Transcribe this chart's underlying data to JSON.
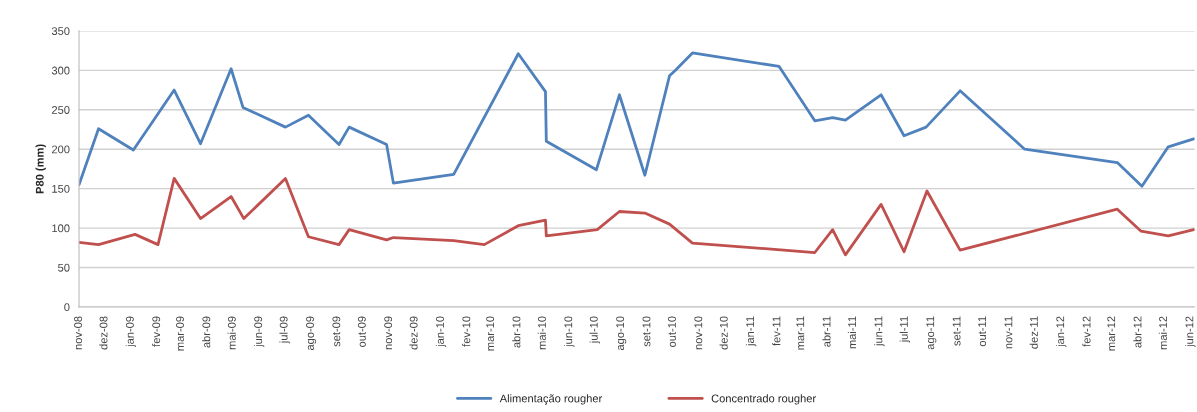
{
  "chart_data": {
    "type": "line",
    "ylabel": "P80 (mm)",
    "ylim": [
      0,
      350
    ],
    "yticks": [
      0,
      50,
      100,
      150,
      200,
      250,
      300,
      350
    ],
    "xlim": [
      "2008-11-01",
      "2012-06-06"
    ],
    "xticks": [
      {
        "value": "2008-11-01",
        "label": "nov-08"
      },
      {
        "value": "2008-12-01",
        "label": "dez-08"
      },
      {
        "value": "2009-01-01",
        "label": "jan-09"
      },
      {
        "value": "2009-02-01",
        "label": "fev-09"
      },
      {
        "value": "2009-03-01",
        "label": "mar-09"
      },
      {
        "value": "2009-04-01",
        "label": "abr-09"
      },
      {
        "value": "2009-05-01",
        "label": "mai-09"
      },
      {
        "value": "2009-06-01",
        "label": "jun-09"
      },
      {
        "value": "2009-07-01",
        "label": "jul-09"
      },
      {
        "value": "2009-08-01",
        "label": "ago-09"
      },
      {
        "value": "2009-09-01",
        "label": "set-09"
      },
      {
        "value": "2009-10-01",
        "label": "out-09"
      },
      {
        "value": "2009-11-01",
        "label": "nov-09"
      },
      {
        "value": "2009-12-01",
        "label": "dez-09"
      },
      {
        "value": "2010-01-01",
        "label": "jan-10"
      },
      {
        "value": "2010-02-01",
        "label": "fev-10"
      },
      {
        "value": "2010-03-01",
        "label": "mar-10"
      },
      {
        "value": "2010-04-01",
        "label": "abr-10"
      },
      {
        "value": "2010-05-01",
        "label": "mai-10"
      },
      {
        "value": "2010-06-01",
        "label": "jun-10"
      },
      {
        "value": "2010-07-01",
        "label": "jul-10"
      },
      {
        "value": "2010-08-01",
        "label": "ago-10"
      },
      {
        "value": "2010-09-01",
        "label": "set-10"
      },
      {
        "value": "2010-10-01",
        "label": "out-10"
      },
      {
        "value": "2010-11-01",
        "label": "nov-10"
      },
      {
        "value": "2010-12-01",
        "label": "dez-10"
      },
      {
        "value": "2011-01-01",
        "label": "jan-11"
      },
      {
        "value": "2011-02-01",
        "label": "fev-11"
      },
      {
        "value": "2011-03-01",
        "label": "mar-11"
      },
      {
        "value": "2011-04-01",
        "label": "abr-11"
      },
      {
        "value": "2011-05-01",
        "label": "mai-11"
      },
      {
        "value": "2011-06-01",
        "label": "jun-11"
      },
      {
        "value": "2011-07-01",
        "label": "jul-11"
      },
      {
        "value": "2011-08-01",
        "label": "ago-11"
      },
      {
        "value": "2011-09-01",
        "label": "set-11"
      },
      {
        "value": "2011-10-01",
        "label": "out-11"
      },
      {
        "value": "2011-11-01",
        "label": "nov-11"
      },
      {
        "value": "2011-12-01",
        "label": "dez-11"
      },
      {
        "value": "2012-01-01",
        "label": "jan-12"
      },
      {
        "value": "2012-02-01",
        "label": "fev-12"
      },
      {
        "value": "2012-03-01",
        "label": "mar-12"
      },
      {
        "value": "2012-04-01",
        "label": "abr-12"
      },
      {
        "value": "2012-05-01",
        "label": "mai-12"
      },
      {
        "value": "2012-06-01",
        "label": "jun-12"
      }
    ],
    "grid": "y",
    "legend": "bottom",
    "marker": "none",
    "line_style": "solid",
    "series": [
      {
        "name": "Alimentação rougher",
        "color": "#4f81bd",
        "x": [
          "2008-11-01",
          "2008-11-24",
          "2009-01-04",
          "2009-02-21",
          "2009-03-24",
          "2009-04-29",
          "2009-05-13",
          "2009-07-02",
          "2009-07-29",
          "2009-09-03",
          "2009-09-15",
          "2009-10-29",
          "2009-11-06",
          "2010-01-16",
          "2010-04-02",
          "2010-05-04",
          "2010-05-05",
          "2010-07-03",
          "2010-07-30",
          "2010-08-29",
          "2010-09-27",
          "2010-10-04",
          "2010-10-24",
          "2011-02-03",
          "2011-03-17",
          "2011-04-07",
          "2011-04-22",
          "2011-06-03",
          "2011-06-30",
          "2011-07-26",
          "2011-09-04",
          "2011-11-19",
          "2012-03-07",
          "2012-04-05",
          "2012-05-06",
          "2012-06-05"
        ],
        "values": [
          155,
          226,
          199,
          275,
          207,
          302,
          253,
          228,
          243,
          206,
          228,
          206,
          157,
          168,
          321,
          273,
          210,
          174,
          269,
          167,
          293,
          300,
          322,
          305,
          236,
          240,
          237,
          269,
          217,
          228,
          274,
          200,
          183,
          153,
          203,
          213
        ]
      },
      {
        "name": "Concentrado rougher",
        "color": "#c0504d",
        "x": [
          "2008-11-01",
          "2008-11-24",
          "2009-01-06",
          "2009-02-02",
          "2009-02-21",
          "2009-03-24",
          "2009-04-29",
          "2009-05-14",
          "2009-07-02",
          "2009-07-29",
          "2009-09-03",
          "2009-09-15",
          "2009-10-29",
          "2009-11-06",
          "2010-01-16",
          "2010-02-21",
          "2010-04-02",
          "2010-05-04",
          "2010-05-05",
          "2010-07-04",
          "2010-07-30",
          "2010-08-29",
          "2010-09-27",
          "2010-10-24",
          "2011-03-17",
          "2011-04-07",
          "2011-04-22",
          "2011-06-03",
          "2011-06-30",
          "2011-07-27",
          "2011-09-04",
          "2012-03-07",
          "2012-04-04",
          "2012-05-06",
          "2012-06-05"
        ],
        "values": [
          82,
          79,
          92,
          79,
          163,
          112,
          140,
          112,
          163,
          89,
          79,
          98,
          85,
          88,
          84,
          79,
          103,
          110,
          90,
          98,
          121,
          119,
          105,
          81,
          69,
          98,
          66,
          130,
          70,
          147,
          72,
          124,
          96,
          90,
          98
        ]
      }
    ]
  }
}
